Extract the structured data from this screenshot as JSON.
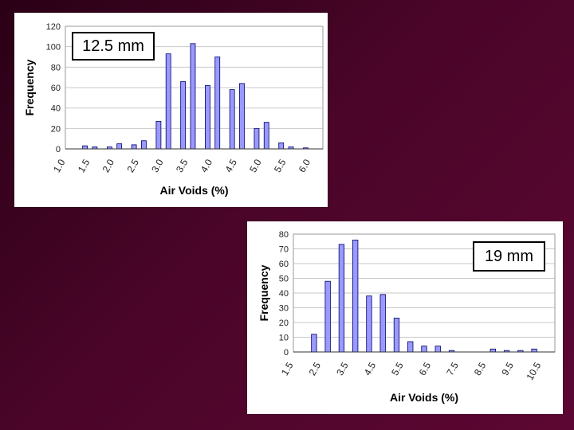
{
  "chart_data": [
    {
      "type": "bar",
      "annotation": "12.5 mm",
      "xlabel": "Air Voids (%)",
      "ylabel": "Frequency",
      "ylim": [
        0,
        120
      ],
      "yticks": [
        0,
        20,
        40,
        60,
        80,
        100,
        120
      ],
      "xlim": [
        1.0,
        6.25
      ],
      "xticks": [
        "1.0",
        "1.5",
        "2.0",
        "2.5",
        "3.0",
        "3.5",
        "4.0",
        "4.5",
        "5.0",
        "5.5",
        "6.0"
      ],
      "grid": true,
      "bar_color": "#9999ff",
      "x": [
        1.4,
        1.6,
        1.9,
        2.1,
        2.4,
        2.6,
        2.9,
        3.1,
        3.4,
        3.6,
        3.9,
        4.1,
        4.4,
        4.6,
        4.9,
        5.1,
        5.4,
        5.6,
        5.9
      ],
      "values": [
        3,
        2,
        2,
        5,
        4,
        8,
        27,
        93,
        66,
        103,
        62,
        90,
        58,
        64,
        20,
        26,
        6,
        2,
        1
      ]
    },
    {
      "type": "bar",
      "annotation": "19 mm",
      "xlabel": "Air Voids (%)",
      "ylabel": "Frequency",
      "ylim": [
        0,
        80
      ],
      "yticks": [
        0,
        10,
        20,
        30,
        40,
        50,
        60,
        70,
        80
      ],
      "xlim": [
        1.5,
        11.0
      ],
      "xticks": [
        "1.5",
        "2.5",
        "3.5",
        "4.5",
        "5.5",
        "6.5",
        "7.5",
        "8.5",
        "9.5",
        "10.5"
      ],
      "grid": true,
      "bar_color": "#9999ff",
      "x": [
        2.25,
        2.75,
        3.25,
        3.75,
        4.25,
        4.75,
        5.25,
        5.75,
        6.25,
        6.75,
        7.25,
        7.75,
        8.25,
        8.75,
        9.25,
        9.75,
        10.25
      ],
      "values": [
        12,
        48,
        73,
        76,
        38,
        39,
        23,
        7,
        4,
        4,
        1,
        0,
        0,
        2,
        1,
        1,
        2
      ]
    }
  ]
}
